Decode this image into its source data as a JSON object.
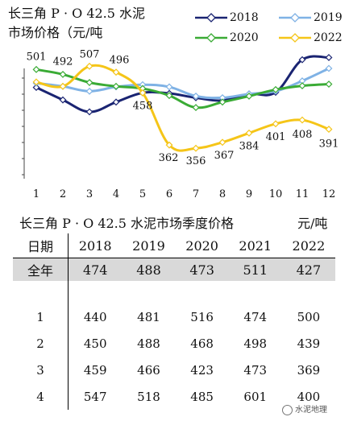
{
  "chart_data": {
    "type": "line",
    "title_line1": "长三角 P · O 42.5 水泥",
    "title_line2": "市场价格（元/吨",
    "categories": [
      "1",
      "2",
      "3",
      "4",
      "5",
      "6",
      "7",
      "8",
      "9",
      "10",
      "11",
      "12"
    ],
    "ylim": [
      300,
      540
    ],
    "grid": false,
    "legend_position": "top-right",
    "series": [
      {
        "name": "2018",
        "color": "#1a2472",
        "marker": "diamond-open",
        "values": [
          468,
          445,
          423,
          441,
          458,
          457,
          449,
          444,
          456,
          459,
          519,
          523
        ]
      },
      {
        "name": "2019",
        "color": "#7fb2e5",
        "marker": "diamond-open",
        "values": [
          476,
          470,
          461,
          469,
          473,
          469,
          452,
          449,
          456,
          461,
          480,
          503
        ]
      },
      {
        "name": "2020",
        "color": "#3aab35",
        "marker": "diamond-open",
        "values": [
          501,
          492,
          477,
          470,
          466,
          453,
          431,
          441,
          452,
          464,
          471,
          474
        ]
      },
      {
        "name": "2022",
        "color": "#f5c518",
        "marker": "diamond-open",
        "values": [
          478,
          470,
          507,
          496,
          458,
          362,
          356,
          367,
          384,
          401,
          408,
          391
        ]
      }
    ],
    "annotations": [
      {
        "series": "2020",
        "index": 0,
        "text": "501"
      },
      {
        "series": "2020",
        "index": 1,
        "text": "492"
      },
      {
        "series": "2022",
        "index": 2,
        "text": "507"
      },
      {
        "series": "2022",
        "index": 3,
        "text": "496"
      },
      {
        "series": "2022",
        "index": 4,
        "text": "458"
      },
      {
        "series": "2022",
        "index": 5,
        "text": "362"
      },
      {
        "series": "2022",
        "index": 6,
        "text": "356"
      },
      {
        "series": "2022",
        "index": 7,
        "text": "367"
      },
      {
        "series": "2022",
        "index": 8,
        "text": "384"
      },
      {
        "series": "2022",
        "index": 9,
        "text": "401"
      },
      {
        "series": "2022",
        "index": 10,
        "text": "408"
      },
      {
        "series": "2022",
        "index": 11,
        "text": "391"
      }
    ]
  },
  "legend": [
    {
      "label": "2018",
      "color": "#1a2472"
    },
    {
      "label": "2019",
      "color": "#7fb2e5"
    },
    {
      "label": "2020",
      "color": "#3aab35"
    },
    {
      "label": "2022",
      "color": "#f5c518"
    }
  ],
  "table": {
    "title": "长三角 P · O 42.5 水泥市场季度价格",
    "unit": "元/吨",
    "headers": [
      "日期",
      "2018",
      "2019",
      "2020",
      "2021",
      "2022"
    ],
    "rows": [
      [
        "全年",
        "474",
        "488",
        "473",
        "511",
        "427"
      ],
      [
        "",
        "",
        "",
        "",
        "",
        ""
      ],
      [
        "1",
        "440",
        "481",
        "516",
        "474",
        "500"
      ],
      [
        "2",
        "450",
        "488",
        "468",
        "498",
        "439"
      ],
      [
        "3",
        "459",
        "466",
        "423",
        "473",
        "369"
      ],
      [
        "4",
        "547",
        "518",
        "485",
        "601",
        "400"
      ]
    ]
  },
  "watermark": "水泥地理"
}
